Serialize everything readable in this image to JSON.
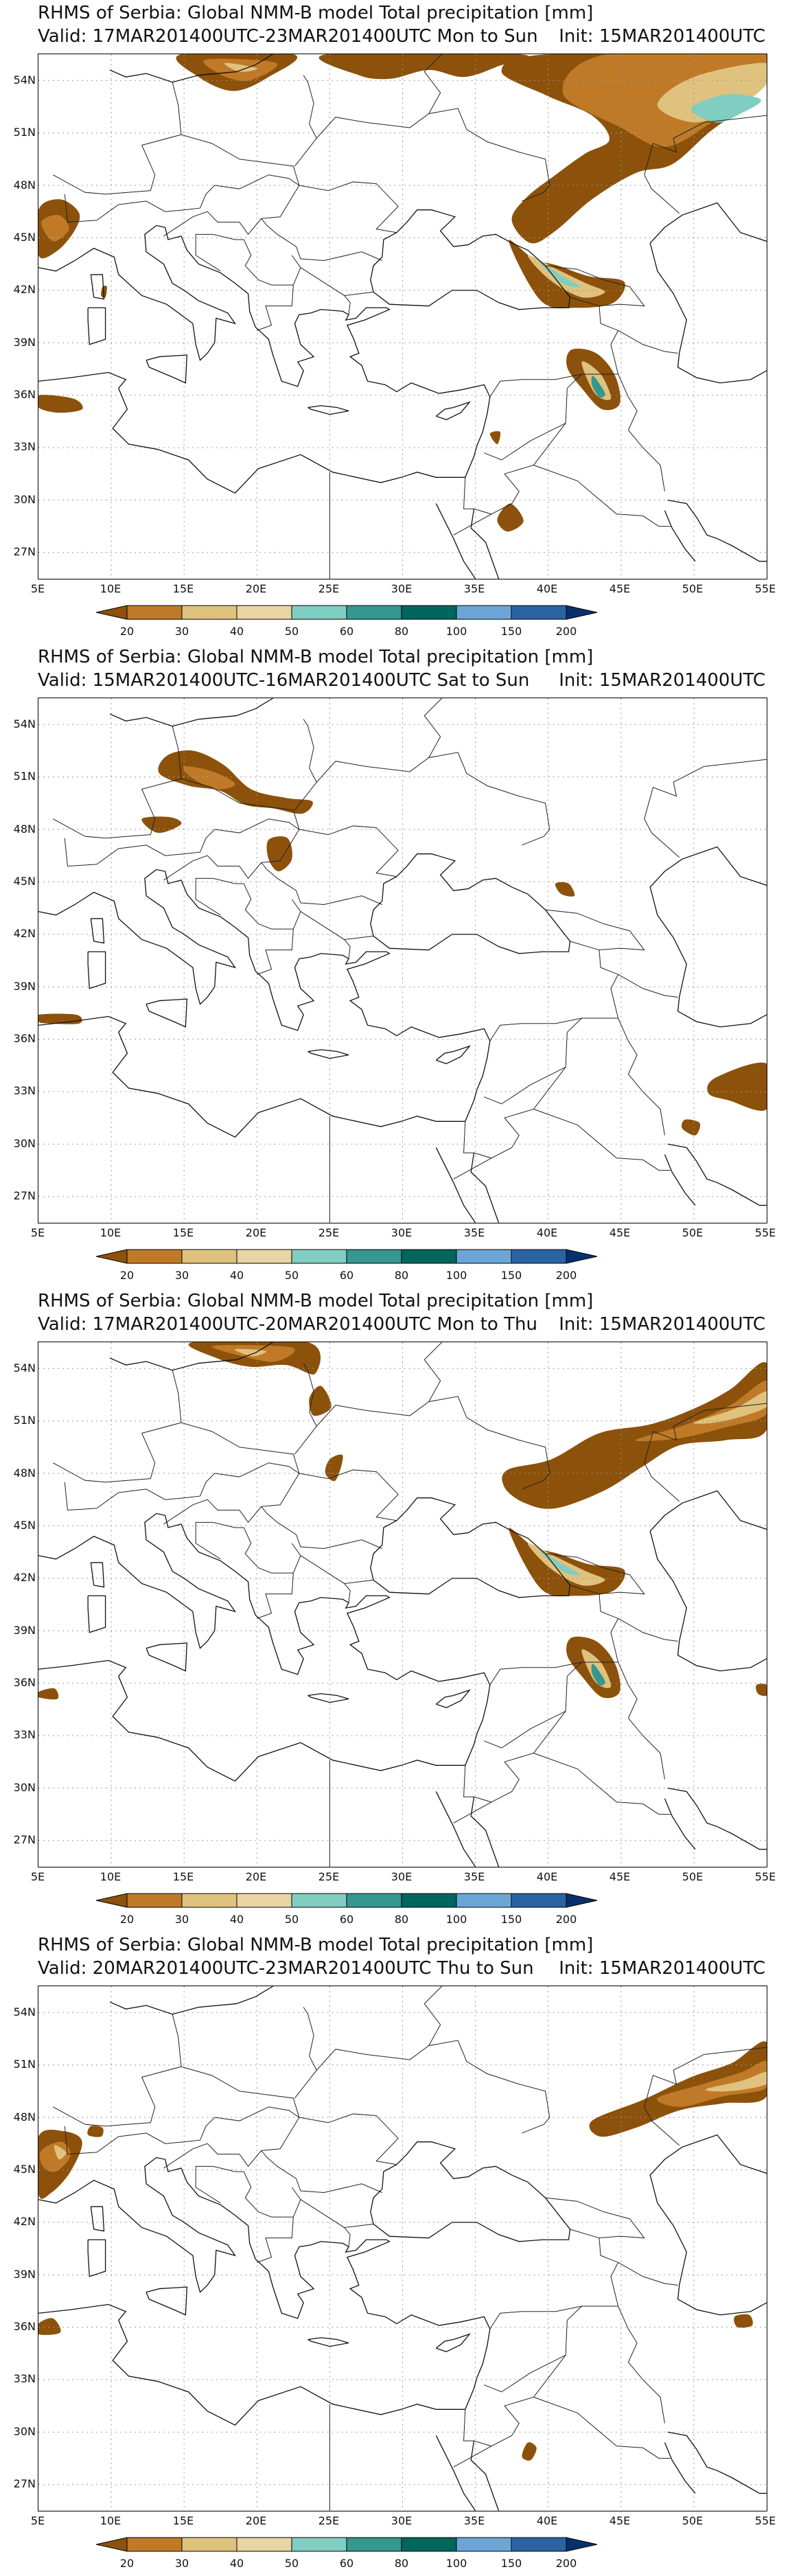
{
  "colorbar": {
    "labels": [
      "20",
      "30",
      "40",
      "50",
      "60",
      "80",
      "100",
      "150",
      "200"
    ],
    "colors": [
      "#8c510a",
      "#c07a27",
      "#dfc27d",
      "#e9d5a4",
      "#80cdc1",
      "#35978f",
      "#01665e",
      "#6ba6d6",
      "#2a63a4",
      "#08306b"
    ]
  },
  "axes": {
    "lat_labels": [
      "54N",
      "51N",
      "48N",
      "45N",
      "42N",
      "39N",
      "36N",
      "33N",
      "30N",
      "27N"
    ],
    "lon_labels": [
      "5E",
      "10E",
      "15E",
      "20E",
      "25E",
      "30E",
      "35E",
      "40E",
      "45E",
      "50E",
      "55E"
    ]
  },
  "panels": [
    {
      "title": "RHMS of Serbia: Global NMM-B model Total precipitation [mm]",
      "valid": "Valid: 17MAR201400UTC-23MAR201400UTC Mon to Sun",
      "init": "Init: 15MAR201400UTC"
    },
    {
      "title": "RHMS of Serbia: Global NMM-B model Total precipitation [mm]",
      "valid": "Valid: 15MAR201400UTC-16MAR201400UTC Sat to Sun",
      "init": "Init: 15MAR201400UTC"
    },
    {
      "title": "RHMS of Serbia: Global NMM-B model Total precipitation [mm]",
      "valid": "Valid: 17MAR201400UTC-20MAR201400UTC Mon to Thu",
      "init": "Init: 15MAR201400UTC"
    },
    {
      "title": "RHMS of Serbia: Global NMM-B model Total precipitation [mm]",
      "valid": "Valid: 20MAR201400UTC-23MAR201400UTC Thu to Sun",
      "init": "Init: 15MAR201400UTC"
    }
  ]
}
